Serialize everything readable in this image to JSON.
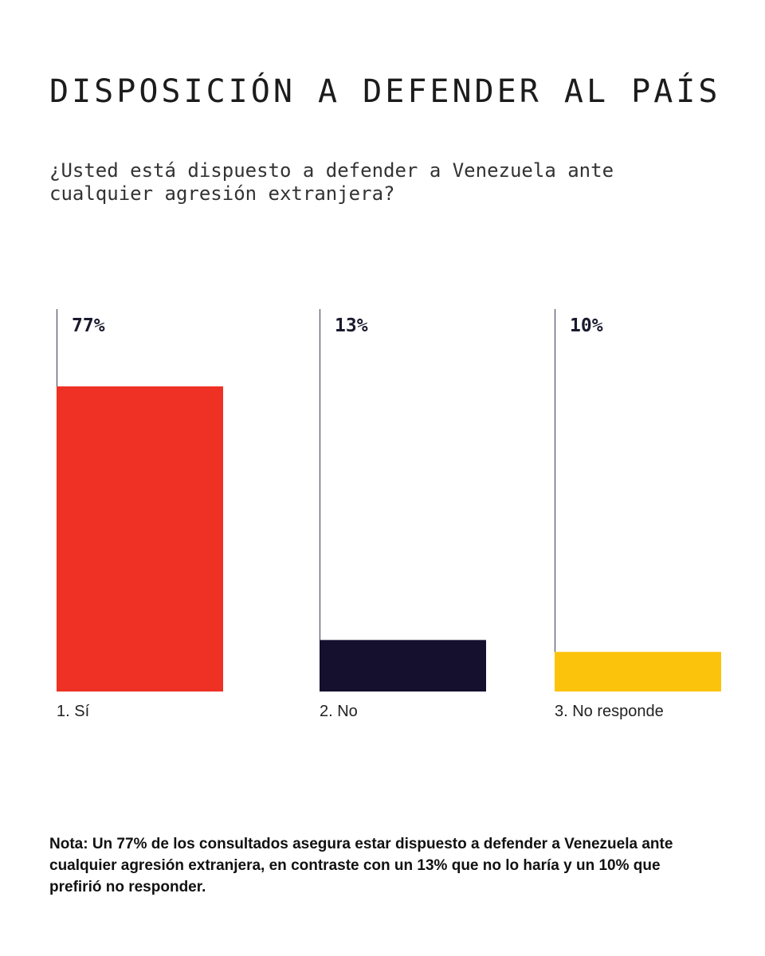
{
  "title": "DISPOSICIÓN A DEFENDER AL PAÍS",
  "subtitle": "¿Usted está dispuesto a defender a Venezuela ante cualquier agresión extranjera?",
  "note": "Nota: Un 77% de los consultados asegura estar dispuesto a defender a Venezuela ante cualquier agresión extranjera, en contraste con un 13% que no lo haría y un 10% que prefirió no responder.",
  "chart_data": {
    "type": "bar",
    "title": "DISPOSICIÓN A DEFENDER AL PAÍS",
    "subtitle": "¿Usted está dispuesto a defender a Venezuela ante cualquier agresión extranjera?",
    "categories": [
      "1. Sí",
      "2. No",
      "3. No responde"
    ],
    "values": [
      77,
      13,
      10
    ],
    "value_labels": [
      "77%",
      "13%",
      "10%"
    ],
    "colors": [
      "#ee3124",
      "#14102e",
      "#fcc30d"
    ],
    "ylim": [
      0,
      100
    ],
    "grid": false,
    "legend": "none"
  }
}
